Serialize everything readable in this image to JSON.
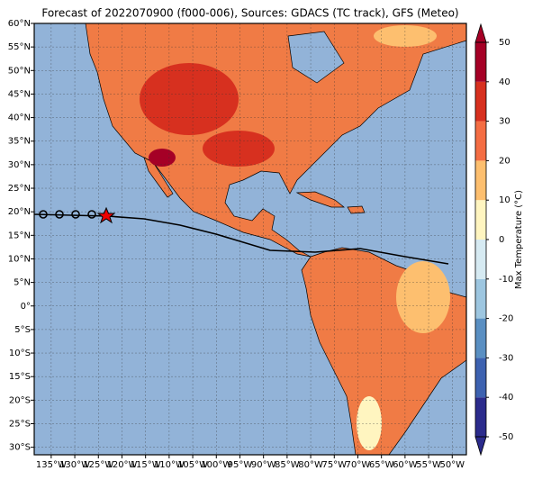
{
  "chart_data": {
    "type": "map",
    "title": "Forecast of 2022070900 (f000-006), Sources: GDACS (TC track), GFS (Meteo)",
    "xlim": [
      -138.6,
      -47.0
    ],
    "ylim": [
      -31.6,
      60
    ],
    "xticks": [
      {
        "value": -135,
        "label": "135°W"
      },
      {
        "value": -130,
        "label": "130°W"
      },
      {
        "value": -125,
        "label": "125°W"
      },
      {
        "value": -120,
        "label": "120°W"
      },
      {
        "value": -115,
        "label": "115°W"
      },
      {
        "value": -110,
        "label": "110°W"
      },
      {
        "value": -105,
        "label": "105°W"
      },
      {
        "value": -100,
        "label": "100°W"
      },
      {
        "value": -95,
        "label": "95°W"
      },
      {
        "value": -90,
        "label": "90°W"
      },
      {
        "value": -85,
        "label": "85°W"
      },
      {
        "value": -80,
        "label": "80°W"
      },
      {
        "value": -75,
        "label": "75°W"
      },
      {
        "value": -70,
        "label": "70°W"
      },
      {
        "value": -65,
        "label": "65°W"
      },
      {
        "value": -60,
        "label": "60°W"
      },
      {
        "value": -55,
        "label": "55°W"
      },
      {
        "value": -50,
        "label": "50°W"
      }
    ],
    "yticks": [
      {
        "value": 60,
        "label": "60°N"
      },
      {
        "value": 55,
        "label": "55°N"
      },
      {
        "value": 50,
        "label": "50°N"
      },
      {
        "value": 45,
        "label": "45°N"
      },
      {
        "value": 40,
        "label": "40°N"
      },
      {
        "value": 35,
        "label": "35°N"
      },
      {
        "value": 30,
        "label": "30°N"
      },
      {
        "value": 25,
        "label": "25°N"
      },
      {
        "value": 20,
        "label": "20°N"
      },
      {
        "value": 15,
        "label": "15°N"
      },
      {
        "value": 10,
        "label": "10°N"
      },
      {
        "value": 5,
        "label": "5°N"
      },
      {
        "value": 0,
        "label": "0°"
      },
      {
        "value": -5,
        "label": "5°S"
      },
      {
        "value": -10,
        "label": "10°S"
      },
      {
        "value": -15,
        "label": "15°S"
      },
      {
        "value": -20,
        "label": "20°S"
      },
      {
        "value": -25,
        "label": "25°S"
      },
      {
        "value": -30,
        "label": "30°S"
      }
    ],
    "grid": true,
    "colorbar": {
      "label": "Max Temperature (°C)",
      "lim": [
        -50,
        50
      ],
      "ticks": [
        -50,
        -40,
        -30,
        -20,
        -10,
        0,
        10,
        20,
        30,
        40,
        50
      ],
      "colors": [
        "#2b2b8c",
        "#3d62b0",
        "#5a8fc2",
        "#9dc6e0",
        "#d6eaf2",
        "#fff5c0",
        "#fdbf6f",
        "#f46d43",
        "#d7301f",
        "#a50026"
      ]
    }
  }
}
